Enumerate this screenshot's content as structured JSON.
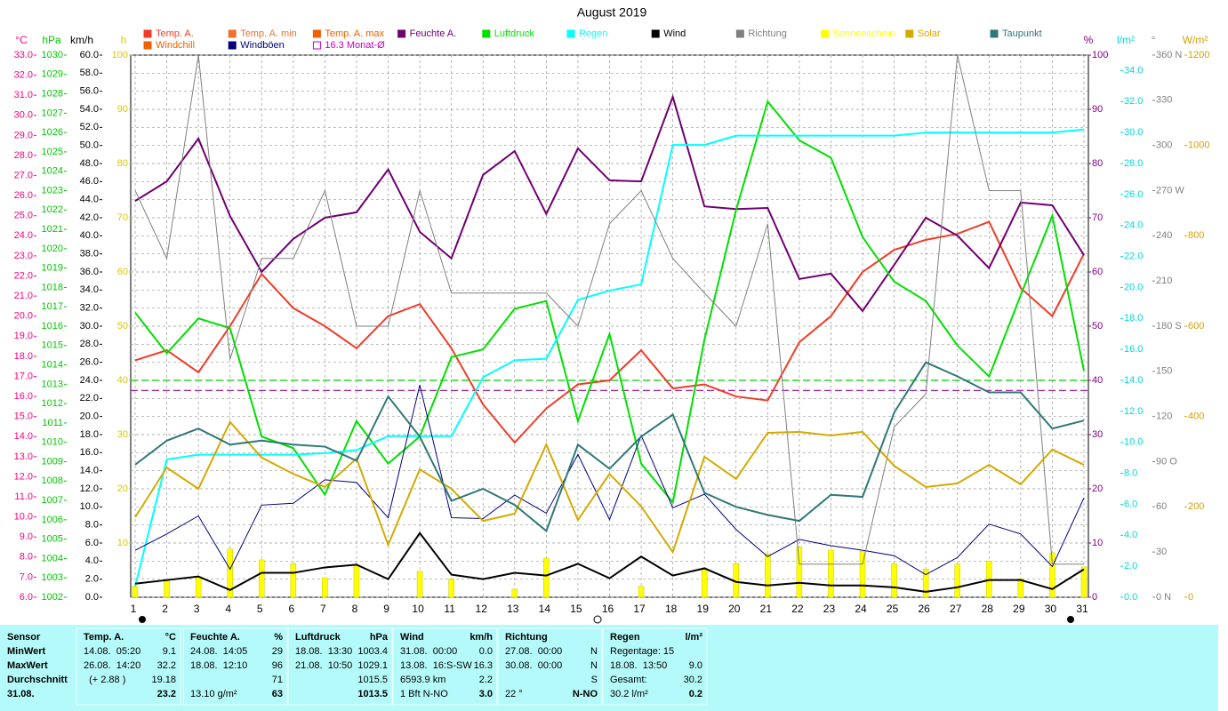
{
  "chart_data": {
    "type": "line",
    "title": "August 2019",
    "categories": [
      "1",
      "2",
      "3",
      "4",
      "5",
      "6",
      "7",
      "8",
      "9",
      "10",
      "11",
      "12",
      "13",
      "14",
      "15",
      "16",
      "17",
      "18",
      "19",
      "20",
      "21",
      "22",
      "23",
      "24",
      "25",
      "26",
      "27",
      "28",
      "29",
      "30",
      "31"
    ],
    "grid": true,
    "grid_axis": "kmh",
    "axes": [
      {
        "id": "temp",
        "unit": "°C",
        "color": "#ff0080",
        "lim": [
          6,
          33
        ],
        "ticks": [
          {
            "value": 6,
            "label": "6.0"
          },
          {
            "value": 7,
            "label": "7.0"
          },
          {
            "value": 8,
            "label": "8.0"
          },
          {
            "value": 9,
            "label": "9.0"
          },
          {
            "value": 10,
            "label": "10.0"
          },
          {
            "value": 11,
            "label": "11.0"
          },
          {
            "value": 12,
            "label": "12.0"
          },
          {
            "value": 13,
            "label": "13.0"
          },
          {
            "value": 14,
            "label": "14.0"
          },
          {
            "value": 15,
            "label": "15.0"
          },
          {
            "value": 16,
            "label": "16.0"
          },
          {
            "value": 17,
            "label": "17.0"
          },
          {
            "value": 18,
            "label": "18.0"
          },
          {
            "value": 19,
            "label": "19.0"
          },
          {
            "value": 20,
            "label": "20.0"
          },
          {
            "value": 21,
            "label": "21.0"
          },
          {
            "value": 22,
            "label": "22.0"
          },
          {
            "value": 23,
            "label": "23.0"
          },
          {
            "value": 24,
            "label": "24.0"
          },
          {
            "value": 25,
            "label": "25.0"
          },
          {
            "value": 26,
            "label": "26.0"
          },
          {
            "value": 27,
            "label": "27.0"
          },
          {
            "value": 28,
            "label": "28.0"
          },
          {
            "value": 29,
            "label": "29.0"
          },
          {
            "value": 30,
            "label": "30.0"
          },
          {
            "value": 31,
            "label": "31.0"
          },
          {
            "value": 32,
            "label": "32.0"
          },
          {
            "value": 33,
            "label": "33.0"
          }
        ]
      },
      {
        "id": "hpa",
        "unit": "hPa",
        "color": "#00c800",
        "lim": [
          1002,
          1030
        ],
        "ticks": [
          1002,
          1003,
          1004,
          1005,
          1006,
          1007,
          1008,
          1009,
          1010,
          1011,
          1012,
          1013,
          1014,
          1015,
          1016,
          1017,
          1018,
          1019,
          1020,
          1021,
          1022,
          1023,
          1024,
          1025,
          1026,
          1027,
          1028,
          1029,
          1030
        ]
      },
      {
        "id": "kmh",
        "unit": "km/h",
        "color": "#000000",
        "lim": [
          0,
          60
        ],
        "ticks": [
          {
            "value": 0,
            "label": "0.0"
          },
          {
            "value": 2,
            "label": "2.0"
          },
          {
            "value": 4,
            "label": "4.0"
          },
          {
            "value": 6,
            "label": "6.0"
          },
          {
            "value": 8,
            "label": "8.0"
          },
          {
            "value": 10,
            "label": "10.0"
          },
          {
            "value": 12,
            "label": "12.0"
          },
          {
            "value": 14,
            "label": "14.0"
          },
          {
            "value": 16,
            "label": "16.0"
          },
          {
            "value": 18,
            "label": "18.0"
          },
          {
            "value": 20,
            "label": "20.0"
          },
          {
            "value": 22,
            "label": "22.0"
          },
          {
            "value": 24,
            "label": "24.0"
          },
          {
            "value": 26,
            "label": "26.0"
          },
          {
            "value": 28,
            "label": "28.0"
          },
          {
            "value": 30,
            "label": "30.0"
          },
          {
            "value": 32,
            "label": "32.0"
          },
          {
            "value": 34,
            "label": "34.0"
          },
          {
            "value": 36,
            "label": "36.0"
          },
          {
            "value": 38,
            "label": "38.0"
          },
          {
            "value": 40,
            "label": "40.0"
          },
          {
            "value": 42,
            "label": "42.0"
          },
          {
            "value": 44,
            "label": "44.0"
          },
          {
            "value": 46,
            "label": "46.0"
          },
          {
            "value": 48,
            "label": "48.0"
          },
          {
            "value": 50,
            "label": "50.0"
          },
          {
            "value": 52,
            "label": "52.0"
          },
          {
            "value": 54,
            "label": "54.0"
          },
          {
            "value": 56,
            "label": "56.0"
          },
          {
            "value": 58,
            "label": "58.0"
          },
          {
            "value": 60,
            "label": "60.0"
          }
        ]
      },
      {
        "id": "h",
        "unit": "h",
        "color": "#d8c800",
        "lim": [
          0,
          100
        ],
        "ticks": [
          10,
          20,
          30,
          40,
          50,
          60,
          70,
          80,
          90,
          100
        ]
      },
      {
        "id": "pct",
        "unit": "%",
        "color": "#800080",
        "lim": [
          0,
          100
        ],
        "ticks": [
          0,
          10,
          20,
          30,
          40,
          50,
          60,
          70,
          80,
          90,
          100
        ]
      },
      {
        "id": "rain",
        "unit": "l/m²",
        "color": "#00d8d8",
        "lim": [
          0,
          35
        ],
        "ticks": [
          {
            "value": 0,
            "label": "0.0"
          },
          {
            "value": 2,
            "label": "2.0"
          },
          {
            "value": 4,
            "label": "4.0"
          },
          {
            "value": 6,
            "label": "6.0"
          },
          {
            "value": 8,
            "label": "8.0"
          },
          {
            "value": 10,
            "label": "10.0"
          },
          {
            "value": 12,
            "label": "12.0"
          },
          {
            "value": 14,
            "label": "14.0"
          },
          {
            "value": 16,
            "label": "16.0"
          },
          {
            "value": 18,
            "label": "18.0"
          },
          {
            "value": 20,
            "label": "20.0"
          },
          {
            "value": 22,
            "label": "22.0"
          },
          {
            "value": 24,
            "label": "24.0"
          },
          {
            "value": 26,
            "label": "26.0"
          },
          {
            "value": 28,
            "label": "28.0"
          },
          {
            "value": 30,
            "label": "30.0"
          },
          {
            "value": 32,
            "label": "32.0"
          },
          {
            "value": 34,
            "label": "34.0"
          }
        ]
      },
      {
        "id": "deg",
        "unit": "°",
        "color": "#808080",
        "lim": [
          0,
          360
        ],
        "ticks": [
          {
            "value": 0,
            "label": "0 N"
          },
          30,
          60,
          {
            "value": 90,
            "label": "90 O"
          },
          120,
          150,
          {
            "value": 180,
            "label": "180 S"
          },
          210,
          240,
          {
            "value": 270,
            "label": "270 W"
          },
          300,
          330,
          {
            "value": 360,
            "label": "360 N"
          }
        ]
      },
      {
        "id": "wm2",
        "unit": "W/m²",
        "color": "#d4a000",
        "lim": [
          0,
          1200
        ],
        "ticks": [
          0,
          200,
          400,
          600,
          800,
          1000,
          1200
        ]
      }
    ],
    "series": [
      {
        "name": "Temp. A.",
        "color": "#f03c28",
        "axis": "temp",
        "values": [
          17.8,
          18.3,
          17.2,
          19.5,
          22.1,
          20.4,
          19.5,
          18.4,
          20.0,
          20.6,
          18.4,
          15.6,
          13.7,
          15.4,
          16.6,
          16.8,
          18.3,
          16.4,
          16.6,
          16.0,
          15.8,
          18.7,
          20.0,
          22.2,
          23.3,
          23.8,
          24.1,
          24.7,
          21.4,
          20.0,
          23.1
        ]
      },
      {
        "name": "Feuchte A.",
        "color": "#700070",
        "axis": "pct",
        "values": [
          73.1,
          76.7,
          84.6,
          70.3,
          60.0,
          66.1,
          70.0,
          71.0,
          78.9,
          67.4,
          62.5,
          77.9,
          82.3,
          70.7,
          82.8,
          76.9,
          76.7,
          92.3,
          72.1,
          71.6,
          71.8,
          58.7,
          59.7,
          52.8,
          61.3,
          70.0,
          66.7,
          60.7,
          72.8,
          72.3,
          63.1
        ]
      },
      {
        "name": "Luftdruck",
        "color": "#00e000",
        "axis": "hpa",
        "values": [
          1016.7,
          1014.6,
          1016.4,
          1015.9,
          1010.3,
          1009.7,
          1007.3,
          1011.1,
          1008.9,
          1010.3,
          1014.4,
          1014.8,
          1016.9,
          1017.3,
          1011.1,
          1015.6,
          1008.9,
          1006.9,
          1015.3,
          1022.0,
          1027.6,
          1025.6,
          1024.7,
          1020.6,
          1018.3,
          1017.3,
          1015.0,
          1013.4,
          1017.6,
          1021.7,
          1013.7
        ]
      },
      {
        "name": "Regen",
        "color": "#00ffff",
        "axis": "rain",
        "values": [
          0.7,
          8.9,
          9.2,
          9.2,
          9.2,
          9.2,
          9.3,
          9.5,
          10.4,
          10.4,
          10.4,
          14.2,
          15.3,
          15.4,
          19.2,
          19.8,
          20.2,
          29.2,
          29.2,
          29.8,
          29.8,
          29.8,
          29.8,
          29.8,
          29.8,
          30.0,
          30.0,
          30.0,
          30.0,
          30.0,
          30.2
        ]
      },
      {
        "name": "Wind",
        "color": "#000000",
        "axis": "kmh",
        "values": [
          1.5,
          1.9,
          2.3,
          0.8,
          2.7,
          2.7,
          3.3,
          3.6,
          2.0,
          7.1,
          2.5,
          2.0,
          2.7,
          2.4,
          3.7,
          2.1,
          4.5,
          2.4,
          3.2,
          1.7,
          1.3,
          1.6,
          1.3,
          1.3,
          1.1,
          0.6,
          1.1,
          1.9,
          1.9,
          0.9,
          3.1
        ]
      },
      {
        "name": "Windböen",
        "color": "#000080",
        "axis": "kmh",
        "values": [
          5.2,
          7.0,
          9.0,
          3.1,
          10.2,
          10.4,
          13.0,
          12.7,
          8.8,
          23.5,
          8.8,
          8.7,
          11.3,
          9.3,
          15.8,
          8.6,
          17.9,
          9.9,
          11.4,
          7.5,
          4.5,
          6.4,
          5.7,
          5.2,
          4.6,
          2.5,
          4.4,
          8.1,
          7.0,
          3.4,
          11.0
        ]
      },
      {
        "name": "Richtung",
        "color": "#808080",
        "axis": "deg",
        "values": [
          270,
          225,
          360,
          158,
          225,
          225,
          270,
          180,
          180,
          270,
          202,
          202,
          202,
          202,
          180,
          248,
          270,
          225,
          202,
          180,
          248,
          22,
          22,
          22,
          113,
          135,
          360,
          270,
          270,
          22,
          22
        ]
      },
      {
        "name": "Sonnenschein",
        "color": "#ffff00",
        "axis": "h",
        "type": "bar",
        "values": [
          2.0,
          3.0,
          3.6,
          8.9,
          6.9,
          6.2,
          3.6,
          5.9,
          0,
          4.8,
          3.4,
          0,
          1.5,
          7.2,
          0,
          0,
          2.0,
          0,
          5.4,
          6.2,
          8.0,
          9.3,
          8.7,
          8.5,
          6.2,
          5.2,
          6.1,
          6.7,
          3.4,
          8.2,
          5.6
        ]
      },
      {
        "name": "Solar",
        "color": "#d4aa00",
        "axis": "wm2",
        "values": [
          177,
          287,
          240,
          388,
          309,
          273,
          244,
          307,
          116,
          283,
          240,
          169,
          185,
          338,
          171,
          273,
          201,
          100,
          311,
          262,
          364,
          366,
          358,
          366,
          291,
          244,
          252,
          293,
          250,
          327,
          293
        ]
      },
      {
        "name": "Taupunkt",
        "color": "#307878",
        "axis": "temp",
        "values": [
          12.6,
          13.8,
          14.4,
          13.6,
          13.8,
          13.6,
          13.5,
          12.8,
          16.0,
          14.0,
          10.8,
          11.4,
          10.6,
          9.3,
          13.6,
          12.4,
          14.0,
          15.1,
          11.2,
          10.5,
          10.1,
          9.8,
          11.1,
          11.0,
          15.2,
          17.7,
          17.0,
          16.2,
          16.2,
          14.4,
          14.8
        ]
      }
    ],
    "legend_only": [
      {
        "name": "Temp. A. min",
        "color": "#f07030"
      },
      {
        "name": "Temp. A. max",
        "color": "#f06000"
      },
      {
        "name": "Windchill",
        "color": "#f06000"
      },
      {
        "name": "16.3 Monat-Ø",
        "color": "#c000c0"
      }
    ],
    "reference_lines": [
      {
        "axis": "temp",
        "value": 16.3,
        "color": "#a000a0"
      },
      {
        "axis": "hpa",
        "value": 1013.2,
        "color": "#00d000"
      }
    ]
  },
  "table": {
    "rows": [
      [
        "Sensor",
        "Temp. A.",
        "°C",
        "Feuchte A.",
        "%",
        "Luftdruck",
        "hPa",
        "Wind",
        "km/h",
        "Richtung",
        null,
        "Regen",
        "l/m²"
      ],
      [
        "MinWert",
        "14.08.  05:20",
        "9.1",
        "24.08.  14:05",
        "29",
        "18.08.  13:30",
        "1003.4",
        "31.08.  00:00",
        "0.0",
        "27.08.  00:00",
        "N",
        "Regentage: 15",
        null
      ],
      [
        "MaxWert",
        "26.08.  14:20",
        "32.2",
        "18.08.  12:10",
        "96",
        "21.08.  10:50",
        "1029.1",
        "13.08.  16:S-SW",
        "16.3",
        "30.08.  00:00",
        "N",
        "18.08.  13:50",
        "9.0"
      ],
      [
        "Durchschnitt",
        "  (+ 2.88 )",
        "19.18",
        null,
        "71",
        null,
        "1015.5",
        "6593.9 km",
        "2.2",
        null,
        "S",
        "Gesamt:",
        "30.2"
      ],
      [
        "31.08.",
        null,
        "23.2",
        "13.10 g/m²",
        "63",
        null,
        "1013.5",
        "1 Bft N-NO",
        "3.0",
        "22 °",
        "N-NO",
        "30.2 l/m²",
        "0.2"
      ]
    ]
  }
}
